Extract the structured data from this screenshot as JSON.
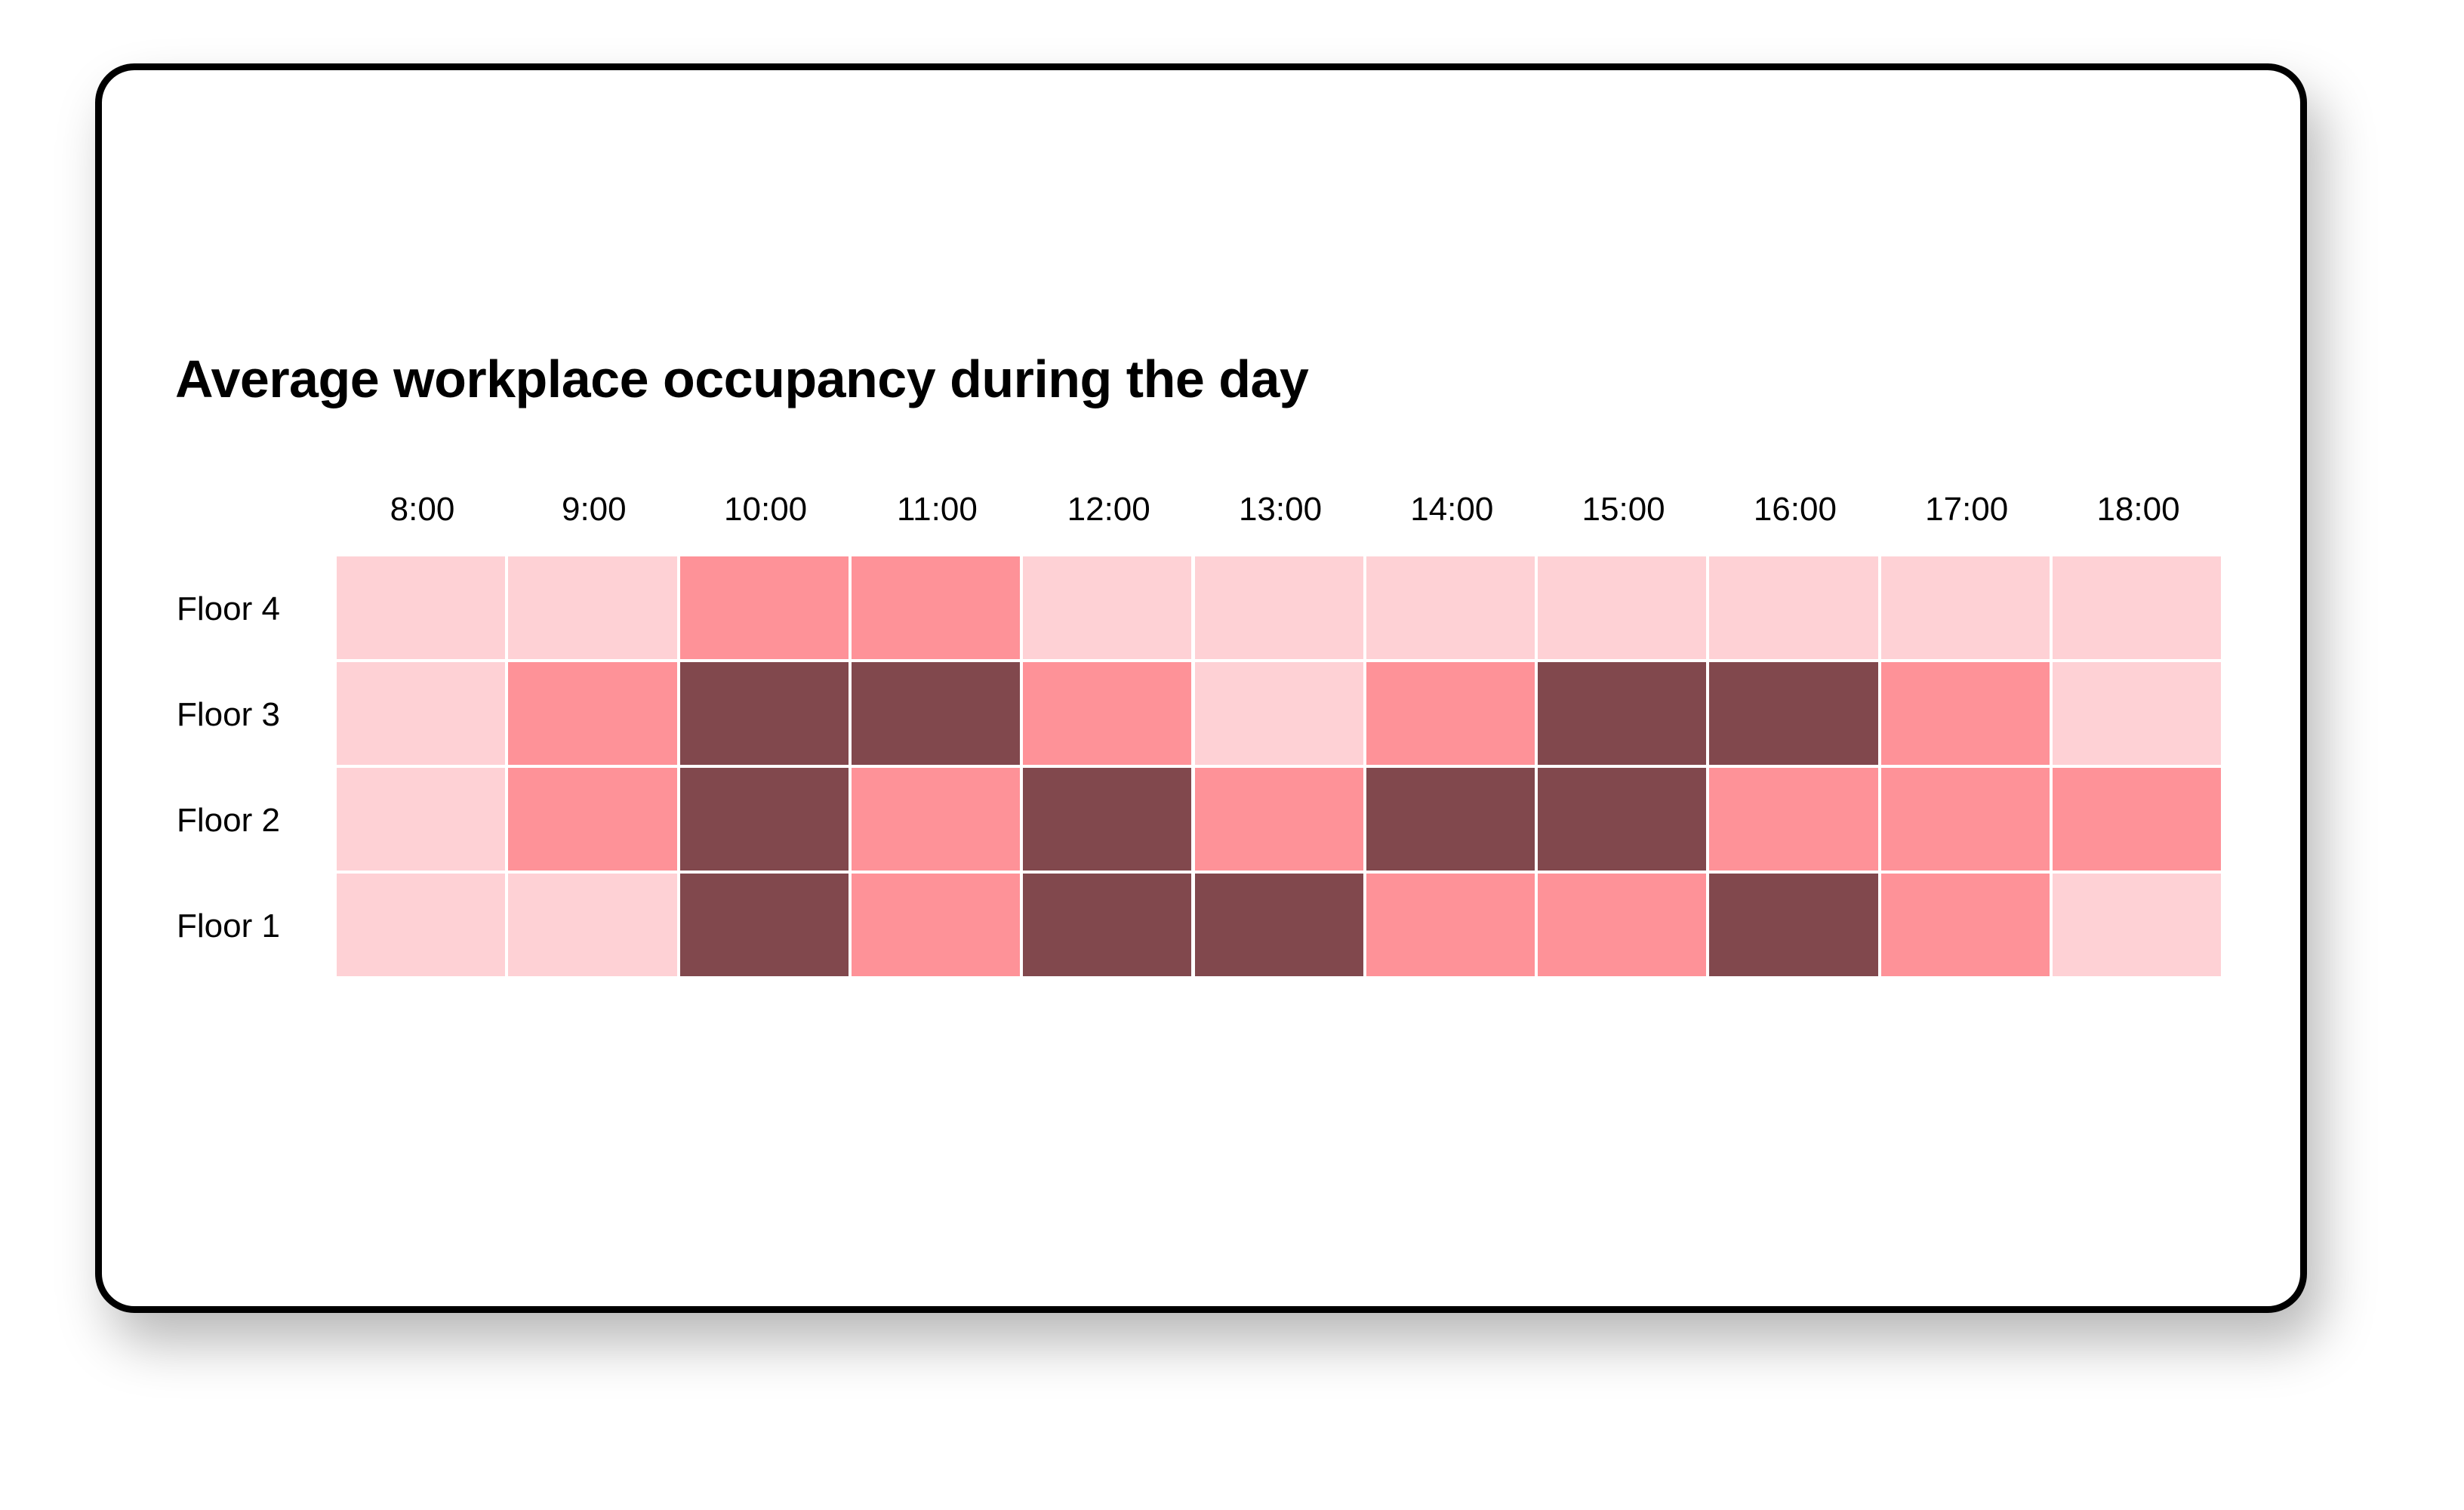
{
  "chart_data": {
    "type": "heatmap",
    "title": "Average workplace occupancy during the day",
    "x_labels": [
      "8:00",
      "9:00",
      "10:00",
      "11:00",
      "12:00",
      "13:00",
      "14:00",
      "15:00",
      "16:00",
      "17:00",
      "18:00"
    ],
    "y_labels": [
      "Floor 4",
      "Floor 3",
      "Floor 2",
      "Floor 1"
    ],
    "scale": "1 = low, 2 = medium, 3 = high occupancy",
    "values": [
      [
        1,
        1,
        2,
        2,
        1,
        1,
        1,
        1,
        1,
        1,
        1
      ],
      [
        1,
        2,
        3,
        3,
        2,
        1,
        2,
        3,
        3,
        2,
        1
      ],
      [
        1,
        2,
        3,
        2,
        3,
        2,
        3,
        3,
        2,
        2,
        2
      ],
      [
        1,
        1,
        3,
        2,
        3,
        3,
        2,
        2,
        3,
        2,
        1
      ]
    ],
    "colors": {
      "1": "#fed1d5",
      "2": "#fe9298",
      "3": "#81484d"
    }
  }
}
